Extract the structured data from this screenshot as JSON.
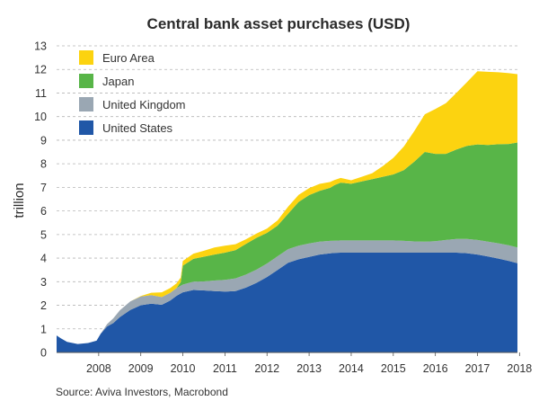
{
  "chart_data": {
    "type": "area",
    "stacked": true,
    "title": "Central bank asset purchases (USD)",
    "ylabel": "trillion",
    "xlabel": "",
    "source": "Source: Aviva Investors, Macrobond",
    "ylim": [
      0,
      13
    ],
    "yticks": [
      "0",
      "1",
      "2",
      "3",
      "4",
      "5",
      "6",
      "7",
      "8",
      "9",
      "10",
      "11",
      "12",
      "13"
    ],
    "xlim": [
      2007.5,
      2018.45
    ],
    "xticks": [
      "2008",
      "2009",
      "2010",
      "2011",
      "2012",
      "2013",
      "2014",
      "2015",
      "2016",
      "2017",
      "2018"
    ],
    "grid": "dashed-horizontal",
    "legend_position": "top-left",
    "x": [
      2007.5,
      2007.6,
      2007.75,
      2008.0,
      2008.25,
      2008.45,
      2008.55,
      2008.7,
      2008.85,
      2009.0,
      2009.25,
      2009.5,
      2009.75,
      2010.0,
      2010.2,
      2010.35,
      2010.45,
      2010.5,
      2010.75,
      2011.0,
      2011.25,
      2011.5,
      2011.75,
      2012.0,
      2012.25,
      2012.5,
      2012.75,
      2013.0,
      2013.25,
      2013.5,
      2013.75,
      2014.0,
      2014.1,
      2014.25,
      2014.5,
      2014.75,
      2015.0,
      2015.25,
      2015.5,
      2015.75,
      2016.0,
      2016.25,
      2016.5,
      2016.75,
      2017.0,
      2017.25,
      2017.5,
      2017.75,
      2018.0,
      2018.25,
      2018.45
    ],
    "series": [
      {
        "name": "United States",
        "color": "#2057a7",
        "values": [
          0.72,
          0.6,
          0.45,
          0.36,
          0.4,
          0.5,
          0.8,
          1.1,
          1.25,
          1.5,
          1.8,
          2.0,
          2.07,
          2.02,
          2.2,
          2.4,
          2.5,
          2.55,
          2.65,
          2.63,
          2.6,
          2.58,
          2.6,
          2.75,
          2.95,
          3.2,
          3.5,
          3.8,
          3.95,
          4.05,
          4.15,
          4.2,
          4.22,
          4.23,
          4.23,
          4.23,
          4.23,
          4.23,
          4.23,
          4.23,
          4.23,
          4.23,
          4.23,
          4.23,
          4.23,
          4.21,
          4.15,
          4.07,
          3.98,
          3.88,
          3.78
        ]
      },
      {
        "name": "United Kingdom",
        "color": "#9aa7b3",
        "values": [
          0,
          0,
          0,
          0,
          0,
          0,
          0,
          0.1,
          0.2,
          0.28,
          0.36,
          0.37,
          0.36,
          0.33,
          0.33,
          0.33,
          0.33,
          0.33,
          0.35,
          0.38,
          0.45,
          0.5,
          0.54,
          0.55,
          0.56,
          0.57,
          0.58,
          0.58,
          0.58,
          0.57,
          0.55,
          0.53,
          0.52,
          0.52,
          0.52,
          0.52,
          0.52,
          0.52,
          0.52,
          0.5,
          0.48,
          0.47,
          0.49,
          0.54,
          0.58,
          0.6,
          0.62,
          0.63,
          0.65,
          0.66,
          0.67
        ]
      },
      {
        "name": "Japan",
        "color": "#58b548",
        "values": [
          0,
          0,
          0,
          0,
          0,
          0,
          0,
          0,
          0,
          0,
          0,
          0,
          0,
          0,
          0,
          0,
          0.15,
          0.8,
          0.97,
          1.05,
          1.1,
          1.15,
          1.2,
          1.3,
          1.35,
          1.3,
          1.3,
          1.5,
          1.85,
          2.05,
          2.15,
          2.25,
          2.35,
          2.45,
          2.4,
          2.5,
          2.6,
          2.7,
          2.8,
          3.0,
          3.38,
          3.8,
          3.7,
          3.65,
          3.8,
          3.95,
          4.05,
          4.1,
          4.2,
          4.3,
          4.45
        ]
      },
      {
        "name": "Euro Area",
        "color": "#fcd310",
        "values": [
          0,
          0,
          0,
          0,
          0,
          0,
          0,
          0,
          0,
          0,
          0,
          0.02,
          0.1,
          0.2,
          0.2,
          0.2,
          0.2,
          0.2,
          0.22,
          0.25,
          0.3,
          0.3,
          0.25,
          0.2,
          0.18,
          0.18,
          0.22,
          0.3,
          0.3,
          0.3,
          0.3,
          0.25,
          0.22,
          0.2,
          0.15,
          0.2,
          0.25,
          0.45,
          0.7,
          1.0,
          1.3,
          1.6,
          1.9,
          2.15,
          2.4,
          2.7,
          3.1,
          3.1,
          3.05,
          3.0,
          2.9
        ]
      }
    ]
  }
}
